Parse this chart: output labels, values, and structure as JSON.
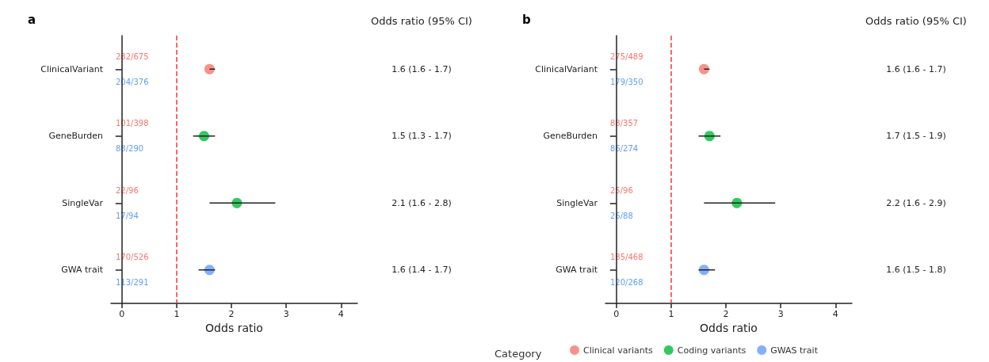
{
  "chart_data": [
    {
      "type": "scatter",
      "title": "a",
      "y2label": "Odds ratio (95% CI)",
      "xlabel": "Odds ratio",
      "orientation": "horizontal",
      "categories": [
        "ClinicalVariant",
        "GeneBurden",
        "SingleVar",
        "GWA trait"
      ],
      "series": [
        {
          "color": "#f8766d",
          "values": [
            1.6,
            null,
            null,
            null
          ],
          "errors": [
            [
              1.6,
              1.7
            ],
            null,
            null,
            null
          ]
        },
        {
          "color": "#00ba38",
          "values": [
            null,
            1.5,
            2.1,
            null
          ],
          "errors": [
            null,
            [
              1.3,
              1.7
            ],
            [
              1.6,
              2.8
            ],
            null
          ]
        },
        {
          "color": "#619cff",
          "values": [
            null,
            null,
            null,
            1.6
          ],
          "errors": [
            null,
            null,
            null,
            [
              1.4,
              1.7
            ]
          ]
        }
      ],
      "xlim": [
        -0.2,
        4.3
      ],
      "xticks": [
        0,
        1,
        2,
        3,
        4
      ],
      "marker": "circle",
      "grid": false,
      "ref_lines": [
        {
          "axis": "x",
          "value": 1,
          "color": "#ff3333",
          "line_style": "dashed"
        }
      ],
      "annotations": [
        "282/675",
        "204/376",
        "101/398",
        "88/290",
        "22/96",
        "17/94",
        "170/526",
        "113/291",
        "1.6 (1.6 - 1.7)",
        "1.5 (1.3 - 1.7)",
        "2.1 (1.6 - 2.8)",
        "1.6 (1.4 - 1.7)"
      ]
    },
    {
      "type": "scatter",
      "title": "b",
      "y2label": "Odds ratio (95% CI)",
      "xlabel": "Odds ratio",
      "orientation": "horizontal",
      "categories": [
        "ClinicalVariant",
        "GeneBurden",
        "SingleVar",
        "GWA trait"
      ],
      "series": [
        {
          "name": "Clinical variants",
          "color": "#f8766d",
          "values": [
            1.6,
            null,
            null,
            null
          ],
          "errors": [
            [
              1.6,
              1.7
            ],
            null,
            null,
            null
          ]
        },
        {
          "name": "Coding variants",
          "color": "#00ba38",
          "values": [
            null,
            1.7,
            2.2,
            null
          ],
          "errors": [
            null,
            [
              1.5,
              1.9
            ],
            [
              1.6,
              2.9
            ],
            null
          ]
        },
        {
          "name": "GWAS trait",
          "color": "#619cff",
          "values": [
            null,
            null,
            null,
            1.6
          ],
          "errors": [
            null,
            null,
            null,
            [
              1.5,
              1.8
            ]
          ]
        }
      ],
      "xlim": [
        -0.2,
        4.3
      ],
      "xticks": [
        0,
        1,
        2,
        3,
        4
      ],
      "marker": "circle",
      "grid": false,
      "legend": "bottom",
      "legend_title": "Category",
      "ref_lines": [
        {
          "axis": "x",
          "value": 1,
          "color": "#ff3333",
          "line_style": "dashed"
        }
      ],
      "annotations": [
        "275/489",
        "179/350",
        "88/357",
        "86/274",
        "25/96",
        "26/88",
        "185/468",
        "120/268",
        "1.6 (1.6 - 1.7)",
        "1.7 (1.5 - 1.9)",
        "2.2 (1.6 - 2.9)",
        "1.6 (1.5 - 1.8)"
      ]
    }
  ]
}
